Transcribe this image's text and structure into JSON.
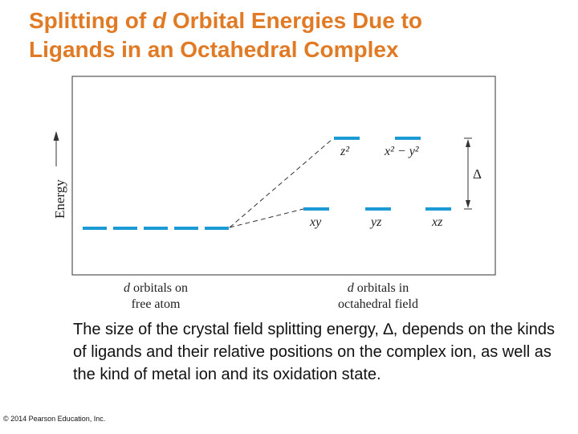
{
  "title": {
    "line1_prefix": "Splitting of ",
    "line1_italic": "d",
    "line1_suffix": " Orbital Energies Due to",
    "line2": "Ligands in an Octahedral Complex"
  },
  "diagram": {
    "energy_label": "Energy",
    "delta_label": "Δ",
    "upper_orbitals": [
      {
        "label": "z²"
      },
      {
        "label": "x² − y²"
      }
    ],
    "lower_orbitals": [
      {
        "label": "xy"
      },
      {
        "label": "yz"
      },
      {
        "label": "xz"
      }
    ],
    "free_atom_caption": {
      "italic": "d",
      "line1_rest": " orbitals on",
      "line2": "free atom"
    },
    "octahedral_caption": {
      "italic": "d",
      "line1_rest": " orbitals in",
      "line2": "octahedral field"
    },
    "colors": {
      "orbital": "#1B9AD6",
      "lines": "#333333",
      "frame": "#555555"
    }
  },
  "caption": "The size of the crystal field splitting energy, ∆, depends on the kinds of ligands and their relative positions on the complex ion, as well as the kind of metal ion and its oxidation state.",
  "copyright": "© 2014 Pearson Education, Inc."
}
